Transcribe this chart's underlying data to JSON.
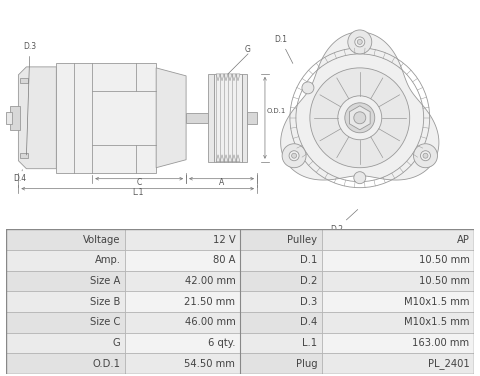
{
  "table_rows": [
    [
      "Voltage",
      "12 V",
      "Pulley",
      "AP"
    ],
    [
      "Amp.",
      "80 A",
      "D.1",
      "10.50 mm"
    ],
    [
      "Size A",
      "42.00 mm",
      "D.2",
      "10.50 mm"
    ],
    [
      "Size B",
      "21.50 mm",
      "D.3",
      "M10x1.5 mm"
    ],
    [
      "Size C",
      "46.00 mm",
      "D.4",
      "M10x1.5 mm"
    ],
    [
      "G",
      "6 qty.",
      "L.1",
      "163.00 mm"
    ],
    [
      "O.D.1",
      "54.50 mm",
      "Plug",
      "PL_2401"
    ]
  ],
  "bg_color": "#ffffff",
  "lc": "#999999",
  "lc_dark": "#777777",
  "fill_light": "#f0f0f0",
  "fill_mid": "#e8e8e8",
  "fill_dark": "#d8d8d8",
  "table_col1_bg_odd": "#e2e2e2",
  "table_col1_bg_even": "#ebebeb",
  "table_col2_bg_odd": "#eaeaea",
  "table_col2_bg_even": "#f3f3f3",
  "table_text_color": "#444444",
  "table_fontsize": 7.2,
  "fig_width": 4.8,
  "fig_height": 3.76
}
